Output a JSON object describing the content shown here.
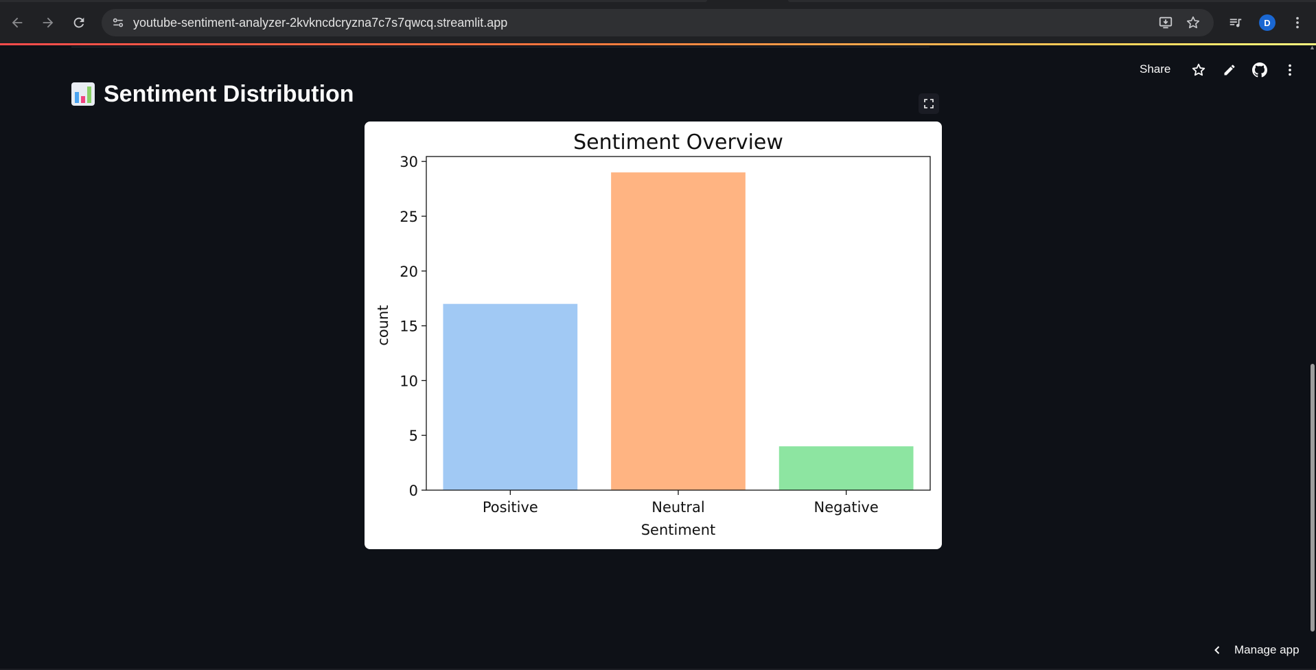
{
  "browser": {
    "url": "youtube-sentiment-analyzer-2kvkncdcryzna7c7s7qwcq.streamlit.app",
    "profile_initial": "D"
  },
  "toolbar": {
    "share_label": "Share"
  },
  "page": {
    "title": "Sentiment Distribution",
    "manage_app_label": "Manage app"
  },
  "colors": {
    "background": "#0e1117",
    "positive": "#a1c9f4",
    "neutral": "#ffb482",
    "negative": "#8de5a1"
  },
  "chart_data": {
    "type": "bar",
    "title": "Sentiment Overview",
    "xlabel": "Sentiment",
    "ylabel": "count",
    "categories": [
      "Positive",
      "Neutral",
      "Negative"
    ],
    "values": [
      17,
      29,
      4
    ],
    "colors": [
      "#a1c9f4",
      "#ffb482",
      "#8de5a1"
    ],
    "ylim": [
      0,
      30.45
    ],
    "yticks": [
      0,
      5,
      10,
      15,
      20,
      25,
      30
    ],
    "grid": false,
    "legend": "none"
  }
}
